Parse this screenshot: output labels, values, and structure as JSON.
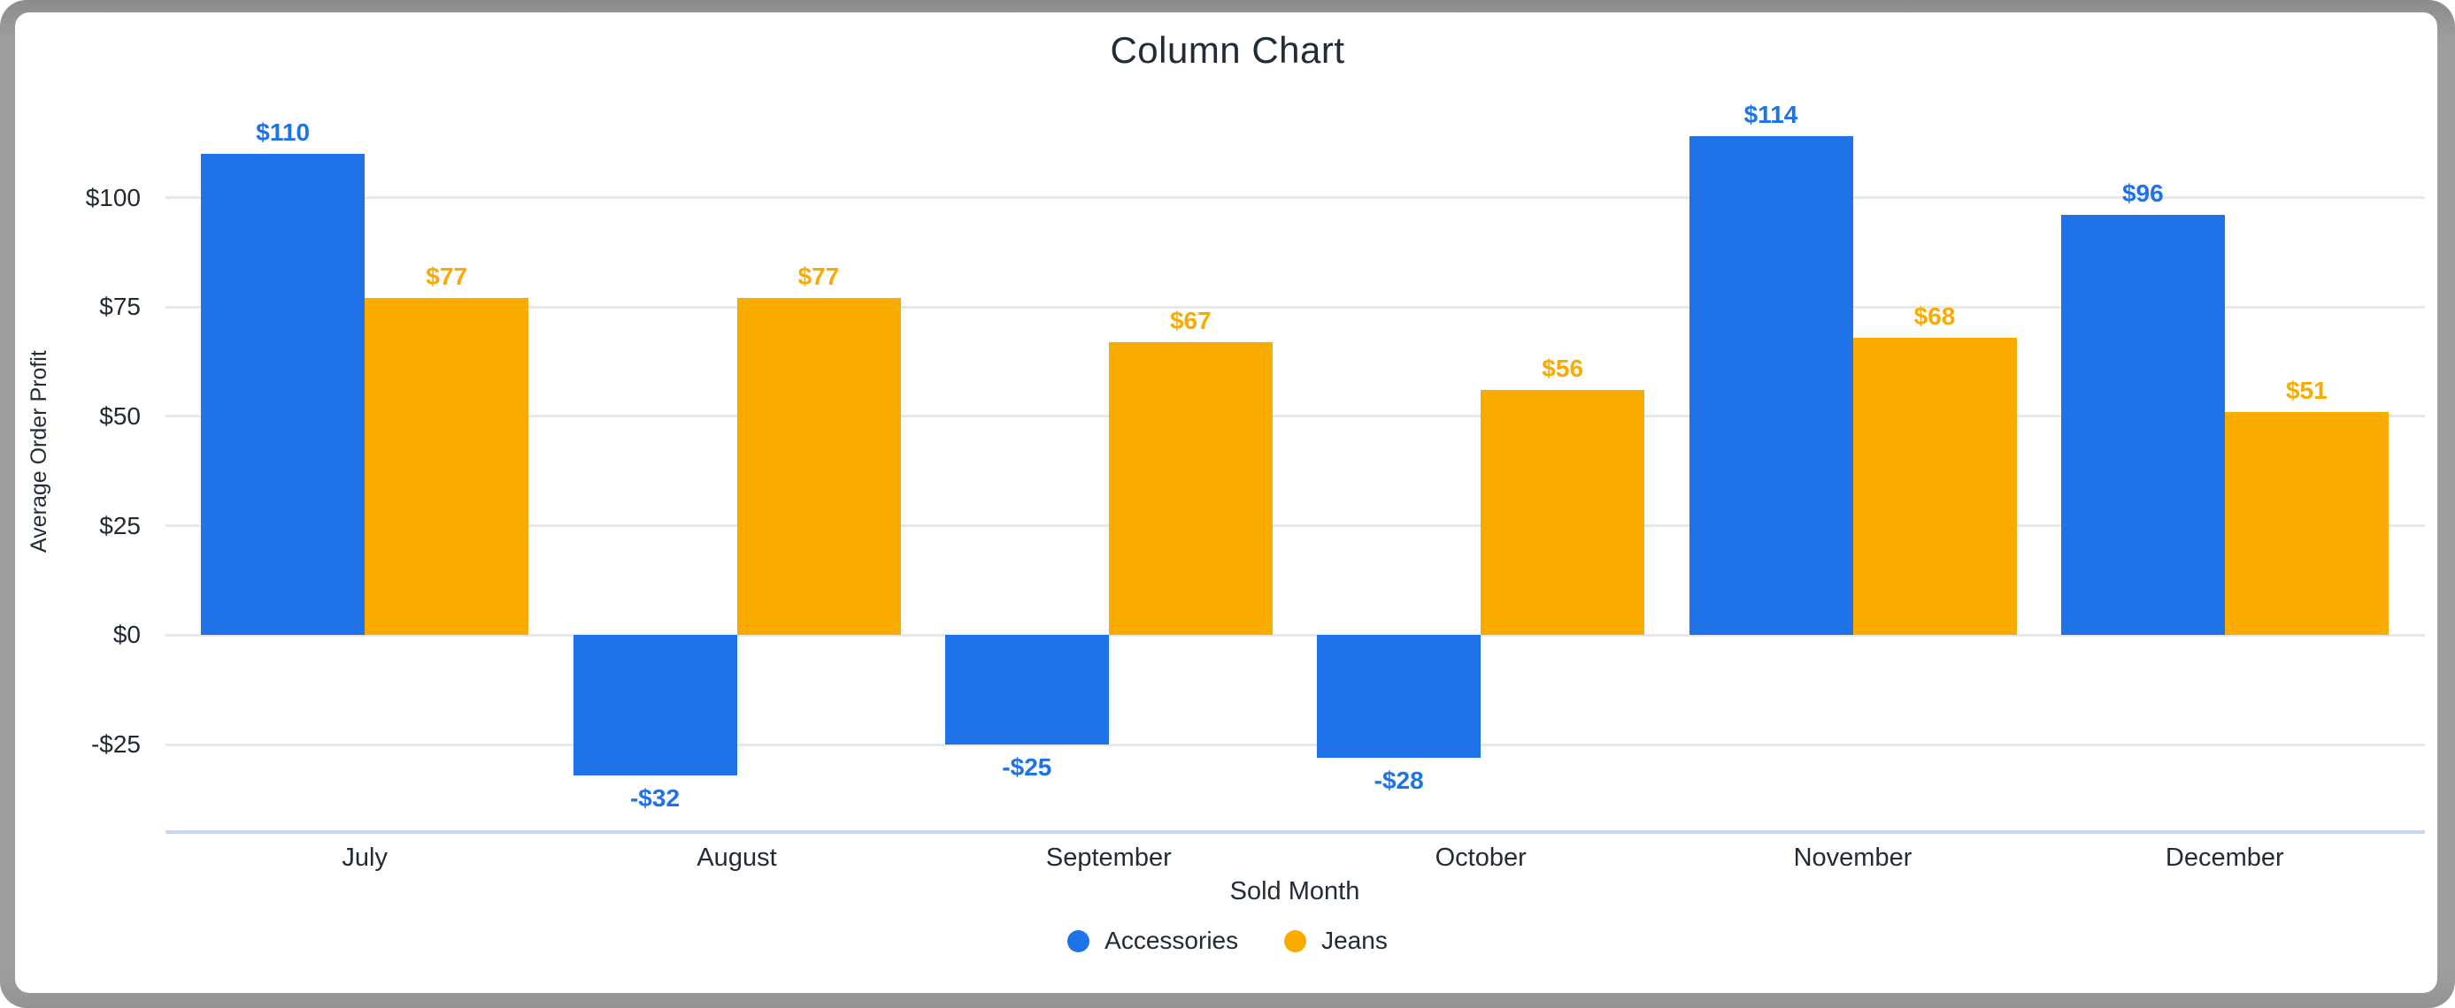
{
  "chart_data": {
    "type": "bar",
    "title": "Column Chart",
    "xlabel": "Sold Month",
    "ylabel": "Average Order Profit",
    "categories": [
      "July",
      "August",
      "September",
      "October",
      "November",
      "December"
    ],
    "series": [
      {
        "name": "Accessories",
        "color": "#1e73e8",
        "values": [
          110,
          -32,
          -25,
          -28,
          114,
          96
        ],
        "labels": [
          "$110",
          "-$32",
          "-$25",
          "-$28",
          "$114",
          "$96"
        ]
      },
      {
        "name": "Jeans",
        "color": "#f9ab00",
        "values": [
          77,
          77,
          67,
          56,
          68,
          51
        ],
        "labels": [
          "$77",
          "$77",
          "$67",
          "$56",
          "$68",
          "$51"
        ]
      }
    ],
    "yticks": [
      {
        "value": 100,
        "label": "$100"
      },
      {
        "value": 75,
        "label": "$75"
      },
      {
        "value": 50,
        "label": "$50"
      },
      {
        "value": 25,
        "label": "$25"
      },
      {
        "value": 0,
        "label": "$0"
      },
      {
        "value": -25,
        "label": "-$25"
      }
    ],
    "ylim": [
      -45,
      129
    ],
    "grid": true,
    "legend_position": "bottom",
    "colors": {
      "gridline": "#e8e8e8",
      "axis_line": "#c9d6ee",
      "text": "#232c36",
      "frame": "#9c9c9c",
      "background": "#ffffff"
    }
  }
}
